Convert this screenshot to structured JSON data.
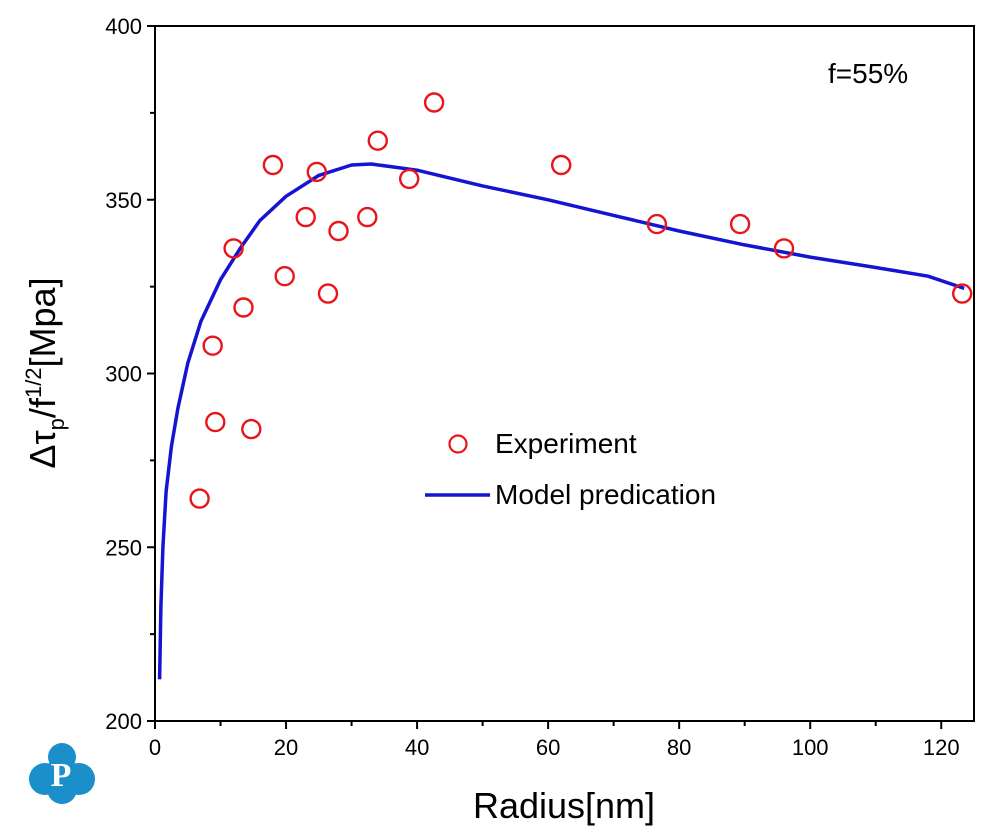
{
  "chart_data": {
    "type": "scatter",
    "xlabel": "Radius[nm]",
    "ylabel": {
      "delta": "Δ",
      "tau": "τ",
      "sub": "p",
      "slash": "/f",
      "sup": "1/2",
      "unit": "[Mpa]"
    },
    "annotation": "f=55%",
    "xlim": [
      0,
      125
    ],
    "ylim": [
      200,
      400
    ],
    "x_ticks": [
      0,
      20,
      40,
      60,
      80,
      100,
      120
    ],
    "y_ticks": [
      200,
      250,
      300,
      350,
      400
    ],
    "grid": false,
    "legend_position": "center",
    "series": [
      {
        "name": "Experiment",
        "kind": "scatter",
        "marker": "open-circle",
        "color": "#e8161b",
        "points": [
          [
            6.8,
            264
          ],
          [
            8.8,
            308
          ],
          [
            9.2,
            286
          ],
          [
            12.0,
            336
          ],
          [
            13.5,
            319
          ],
          [
            14.7,
            284
          ],
          [
            18.0,
            360
          ],
          [
            19.8,
            328
          ],
          [
            23.0,
            345
          ],
          [
            24.7,
            358
          ],
          [
            26.4,
            323
          ],
          [
            28.0,
            341
          ],
          [
            32.4,
            345
          ],
          [
            34.0,
            367
          ],
          [
            38.8,
            356
          ],
          [
            42.6,
            378
          ],
          [
            62.0,
            360
          ],
          [
            76.6,
            343
          ],
          [
            89.3,
            343
          ],
          [
            96.0,
            336
          ],
          [
            123.2,
            323
          ]
        ]
      },
      {
        "name": "Model predication",
        "kind": "line",
        "color": "#1414d2",
        "points": [
          [
            0.7,
            212
          ],
          [
            0.9,
            233
          ],
          [
            1.2,
            250
          ],
          [
            1.7,
            266
          ],
          [
            2.5,
            279
          ],
          [
            3.5,
            290
          ],
          [
            5,
            303
          ],
          [
            7,
            315
          ],
          [
            10,
            327
          ],
          [
            13,
            336
          ],
          [
            16,
            344
          ],
          [
            20,
            351
          ],
          [
            25,
            357
          ],
          [
            30,
            360
          ],
          [
            33,
            360.3
          ],
          [
            40,
            358.5
          ],
          [
            50,
            354
          ],
          [
            60,
            350
          ],
          [
            70,
            345.5
          ],
          [
            80,
            341
          ],
          [
            90,
            337
          ],
          [
            100,
            333.5
          ],
          [
            110,
            330.5
          ],
          [
            118,
            328
          ],
          [
            123.5,
            324.5
          ]
        ]
      }
    ]
  },
  "logo": {
    "letter": "P",
    "color": "#1a8fc9"
  }
}
